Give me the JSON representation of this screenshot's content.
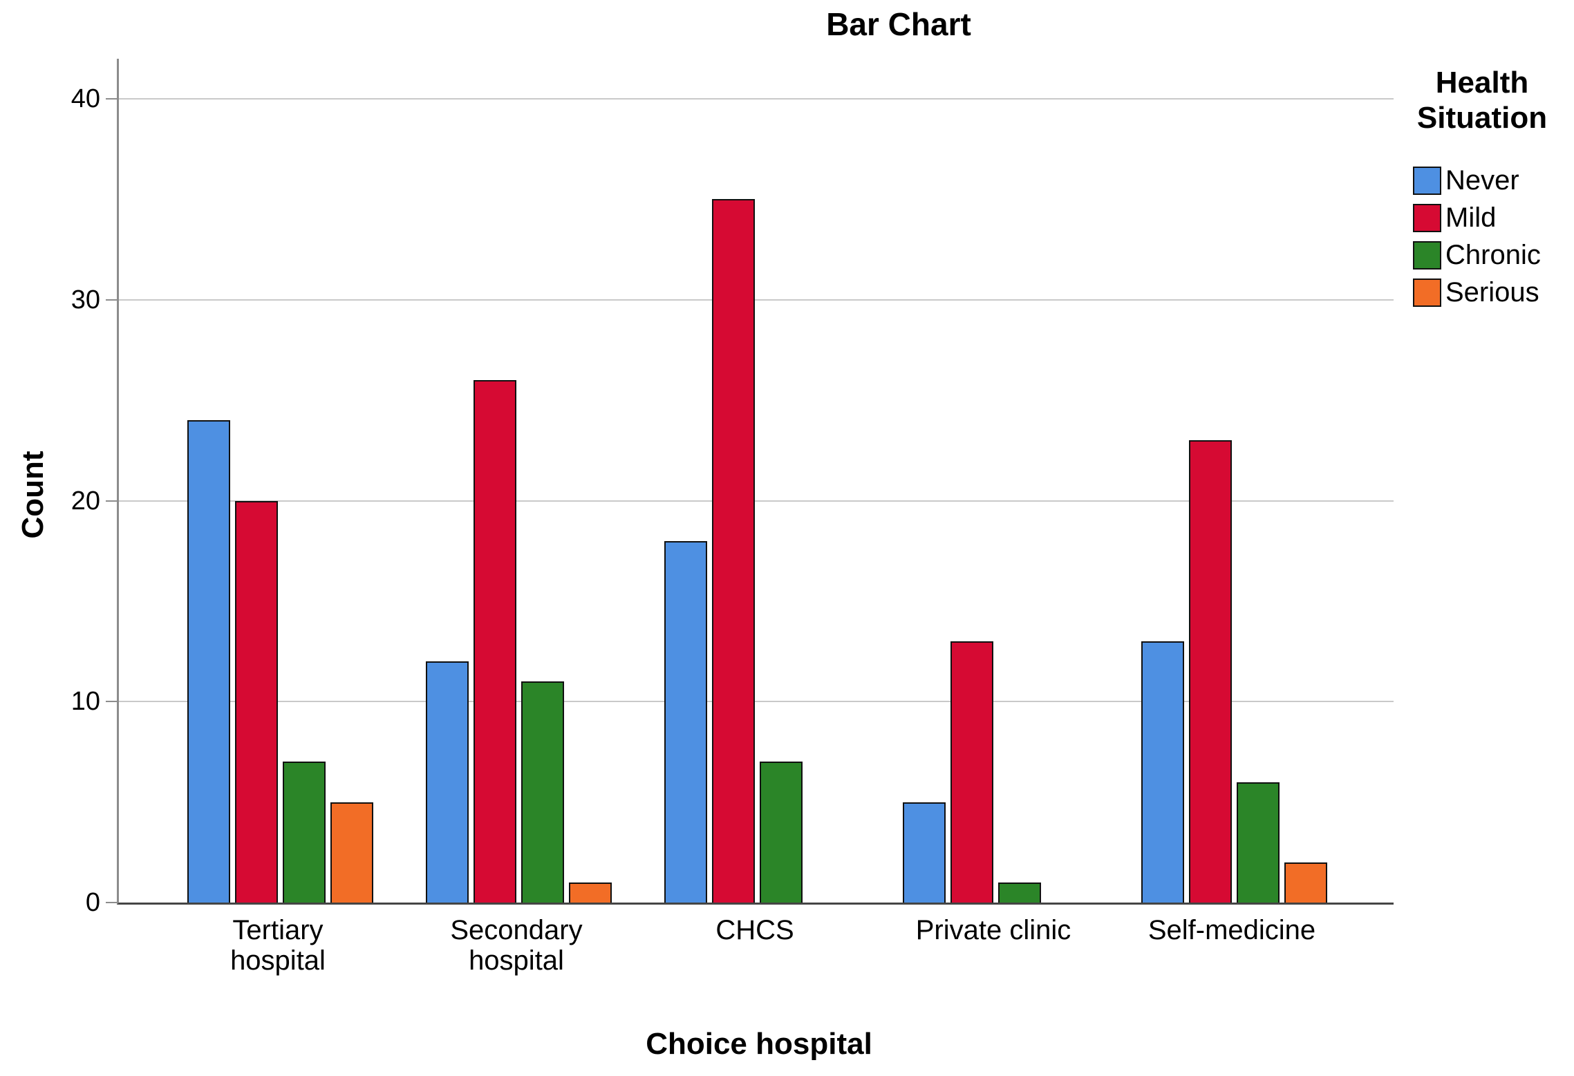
{
  "chart_data": {
    "type": "bar",
    "title": "Bar Chart",
    "xlabel": "Choice hospital",
    "ylabel": "Count",
    "legend_title": "Health Situation",
    "legend_position": "right",
    "grid": true,
    "categories": [
      "Tertiary hospital",
      "Secondary hospital",
      "CHCS",
      "Private clinic",
      "Self-medicine"
    ],
    "xtick_labels": [
      "Tertiary\nhospital",
      "Secondary\nhospital",
      "CHCS",
      "Private clinic",
      "Self-medicine"
    ],
    "series": [
      {
        "name": "Never",
        "color": "#4E90E2",
        "values": [
          24,
          12,
          18,
          5,
          13
        ]
      },
      {
        "name": "Mild",
        "color": "#D60A33",
        "values": [
          20,
          26,
          35,
          13,
          23
        ]
      },
      {
        "name": "Chronic",
        "color": "#2B8528",
        "values": [
          7,
          11,
          7,
          1,
          6
        ]
      },
      {
        "name": "Serious",
        "color": "#F26D26",
        "values": [
          5,
          1,
          0,
          0,
          2
        ]
      }
    ],
    "yticks": [
      0,
      10,
      20,
      30,
      40
    ],
    "ylim": [
      0,
      42
    ],
    "colors": {
      "gridline": "#c9c9c9",
      "y_axis": "#8c8c8c",
      "x_axis": "#454545",
      "bar_border": "#101010",
      "background": "#ffffff"
    }
  }
}
